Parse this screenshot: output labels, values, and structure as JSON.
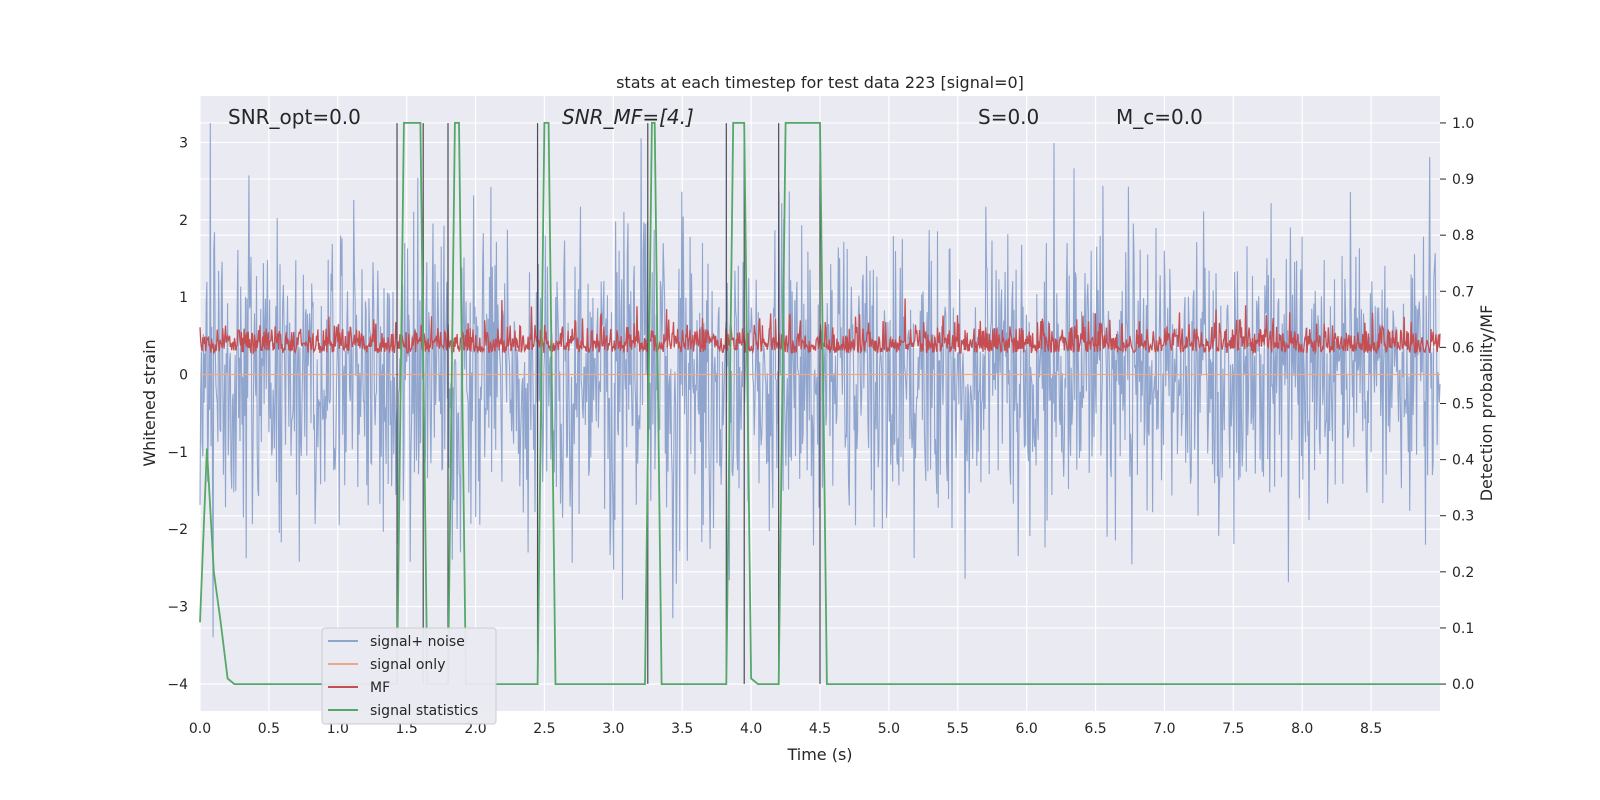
{
  "chart_data": {
    "type": "line",
    "title": "stats at each timestep for test data 223 [signal=0]",
    "xlabel": "Time (s)",
    "ylabel": "Whitened strain",
    "y2label": "Detection probability/MF",
    "xlim": [
      0,
      9.0
    ],
    "ylim": [
      -4.35,
      3.6
    ],
    "y2lim": [
      -0.048,
      1.048
    ],
    "x_ticks": [
      "0.0",
      "0.5",
      "1.0",
      "1.5",
      "2.0",
      "2.5",
      "3.0",
      "3.5",
      "4.0",
      "4.5",
      "5.0",
      "5.5",
      "6.0",
      "6.5",
      "7.0",
      "7.5",
      "8.0",
      "8.5"
    ],
    "y_ticks": [
      "3",
      "2",
      "1",
      "0",
      "−1",
      "−2",
      "−3",
      "−4"
    ],
    "y2_ticks": [
      "1.0",
      "0.9",
      "0.8",
      "0.7",
      "0.6",
      "0.5",
      "0.4",
      "0.3",
      "0.2",
      "0.1",
      "0.0"
    ],
    "grid": true,
    "legend_position": "lower-left",
    "annotations": [
      {
        "text": "SNR_opt=0.0"
      },
      {
        "text": "SNR_MF=[4.]"
      },
      {
        "text": "S=0.0"
      },
      {
        "text": "M_c=0.0"
      }
    ],
    "series": [
      {
        "name": "signal+ noise",
        "axis": "left",
        "color": "#8fa5ce",
        "description_stats": {
          "mean": 0.0,
          "std": 0.95,
          "min": -3.95,
          "max": 3.25
        },
        "samples": 1800
      },
      {
        "name": "signal only",
        "axis": "left",
        "color": "#e9a98a",
        "x": [
          0.0,
          9.0
        ],
        "y": [
          0.0,
          0.0
        ]
      },
      {
        "name": "MF",
        "axis": "right",
        "color": "#c44e52",
        "description_stats": {
          "base": 0.6,
          "min": 0.55,
          "max": 0.7
        },
        "samples": 1800
      },
      {
        "name": "signal statistics",
        "axis": "right",
        "color": "#55a868",
        "x": [
          0.0,
          0.05,
          0.1,
          0.15,
          0.2,
          0.25,
          1.43,
          1.48,
          1.6,
          1.65,
          1.8,
          1.85,
          1.88,
          1.93,
          2.45,
          2.5,
          2.53,
          2.58,
          3.23,
          3.28,
          3.3,
          3.35,
          3.82,
          3.87,
          3.95,
          4.0,
          4.05,
          4.2,
          4.25,
          4.5,
          4.55,
          9.0
        ],
        "y": [
          0.11,
          0.42,
          0.2,
          0.11,
          0.01,
          0.0,
          0.0,
          1.0,
          1.0,
          0.0,
          0.0,
          1.0,
          1.0,
          0.0,
          0.0,
          1.0,
          1.0,
          0.0,
          0.0,
          1.0,
          1.0,
          0.0,
          0.0,
          1.0,
          1.0,
          0.01,
          0.0,
          0.0,
          1.0,
          1.0,
          0.0,
          0.0
        ]
      }
    ],
    "vertical_lines": [
      1.43,
      1.62,
      1.8,
      2.45,
      3.25,
      3.82,
      3.95,
      4.2,
      4.5
    ]
  },
  "colors": {
    "axes_bg": "#eaeaf2",
    "grid": "#ffffff",
    "vline": "#4c4c55"
  }
}
